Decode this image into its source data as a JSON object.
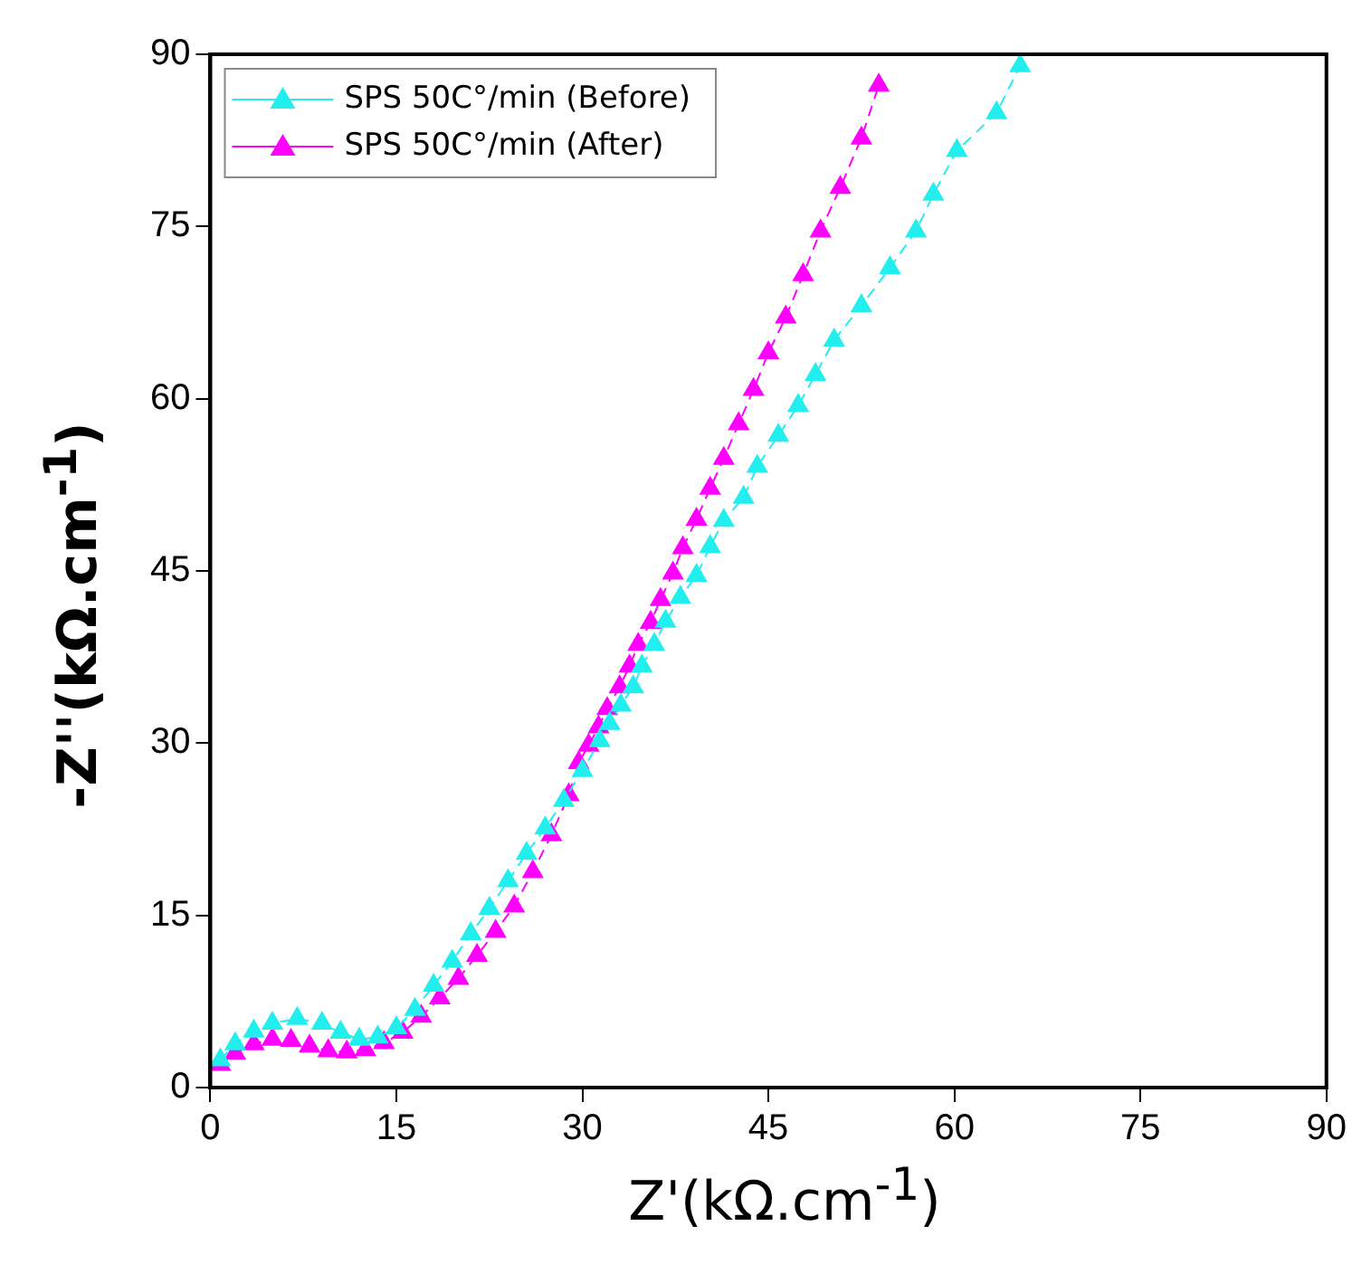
{
  "chart_data": {
    "type": "line",
    "xlabel": "Z'(kΩ.cm$^{-1}$)",
    "ylabel": "-Z''(kΩ.cm$^{-1}$)",
    "xlim": [
      0,
      90
    ],
    "xticks": [
      0,
      15,
      30,
      45,
      60,
      75,
      90
    ],
    "ylim": [
      0,
      90
    ],
    "yticks": [
      0,
      15,
      30,
      45,
      60,
      75,
      90
    ],
    "grid": false,
    "legend": "top left",
    "marker": "triangle",
    "line_style": "dashed",
    "series": [
      {
        "name": "SPS 50C°/min (Before)",
        "color": "#22eeee",
        "x": [
          0.8,
          2,
          3.5,
          5,
          7,
          9,
          10.5,
          12,
          13.5,
          15,
          16.5,
          18,
          19.5,
          21,
          22.5,
          24,
          25.5,
          27,
          28.5,
          30,
          31.4,
          32.2,
          33.1,
          34.1,
          34.8,
          35.8,
          36.7,
          37.9,
          39.2,
          40.3,
          41.4,
          43.0,
          44.1,
          45.8,
          47.4,
          48.8,
          50.3,
          52.5,
          54.8,
          56.9,
          58.3,
          60.2,
          63.4,
          65.3
        ],
        "values": [
          2.4,
          3.8,
          4.9,
          5.6,
          6.0,
          5.6,
          4.8,
          4.2,
          4.4,
          5.2,
          6.8,
          8.9,
          11.0,
          13.4,
          15.6,
          18.0,
          20.4,
          22.6,
          25.0,
          27.6,
          30.2,
          31.7,
          33.3,
          34.9,
          36.7,
          38.6,
          40.6,
          42.7,
          44.6,
          47.1,
          49.4,
          51.4,
          54.1,
          56.8,
          59.4,
          62.1,
          65.1,
          68.1,
          71.4,
          74.6,
          77.8,
          81.6,
          84.9,
          89.0
        ]
      },
      {
        "name": "SPS 50C°/min (After)",
        "color": "#ff00ff",
        "x": [
          0.8,
          2,
          3.5,
          5,
          6.5,
          8,
          9.5,
          11,
          12.5,
          14,
          15.5,
          17,
          18.5,
          20,
          21.5,
          23,
          24.5,
          26,
          27.5,
          28.9,
          29.7,
          30.5,
          31.3,
          32.0,
          33.0,
          33.8,
          34.5,
          35.5,
          36.3,
          37.3,
          38.1,
          39.2,
          40.3,
          41.4,
          42.6,
          43.8,
          45.0,
          46.4,
          47.8,
          49.2,
          50.8,
          52.5,
          53.9
        ],
        "values": [
          2.0,
          3.0,
          3.8,
          4.2,
          4.1,
          3.6,
          3.2,
          3.1,
          3.3,
          3.9,
          4.8,
          6.2,
          7.8,
          9.5,
          11.5,
          13.6,
          15.8,
          18.8,
          22.0,
          25.5,
          28.3,
          29.8,
          31.4,
          33.0,
          34.9,
          36.7,
          38.6,
          40.5,
          42.5,
          44.8,
          47.0,
          49.5,
          52.2,
          54.8,
          57.8,
          60.8,
          64.0,
          67.1,
          70.8,
          74.6,
          78.4,
          82.7,
          87.3
        ]
      }
    ]
  }
}
